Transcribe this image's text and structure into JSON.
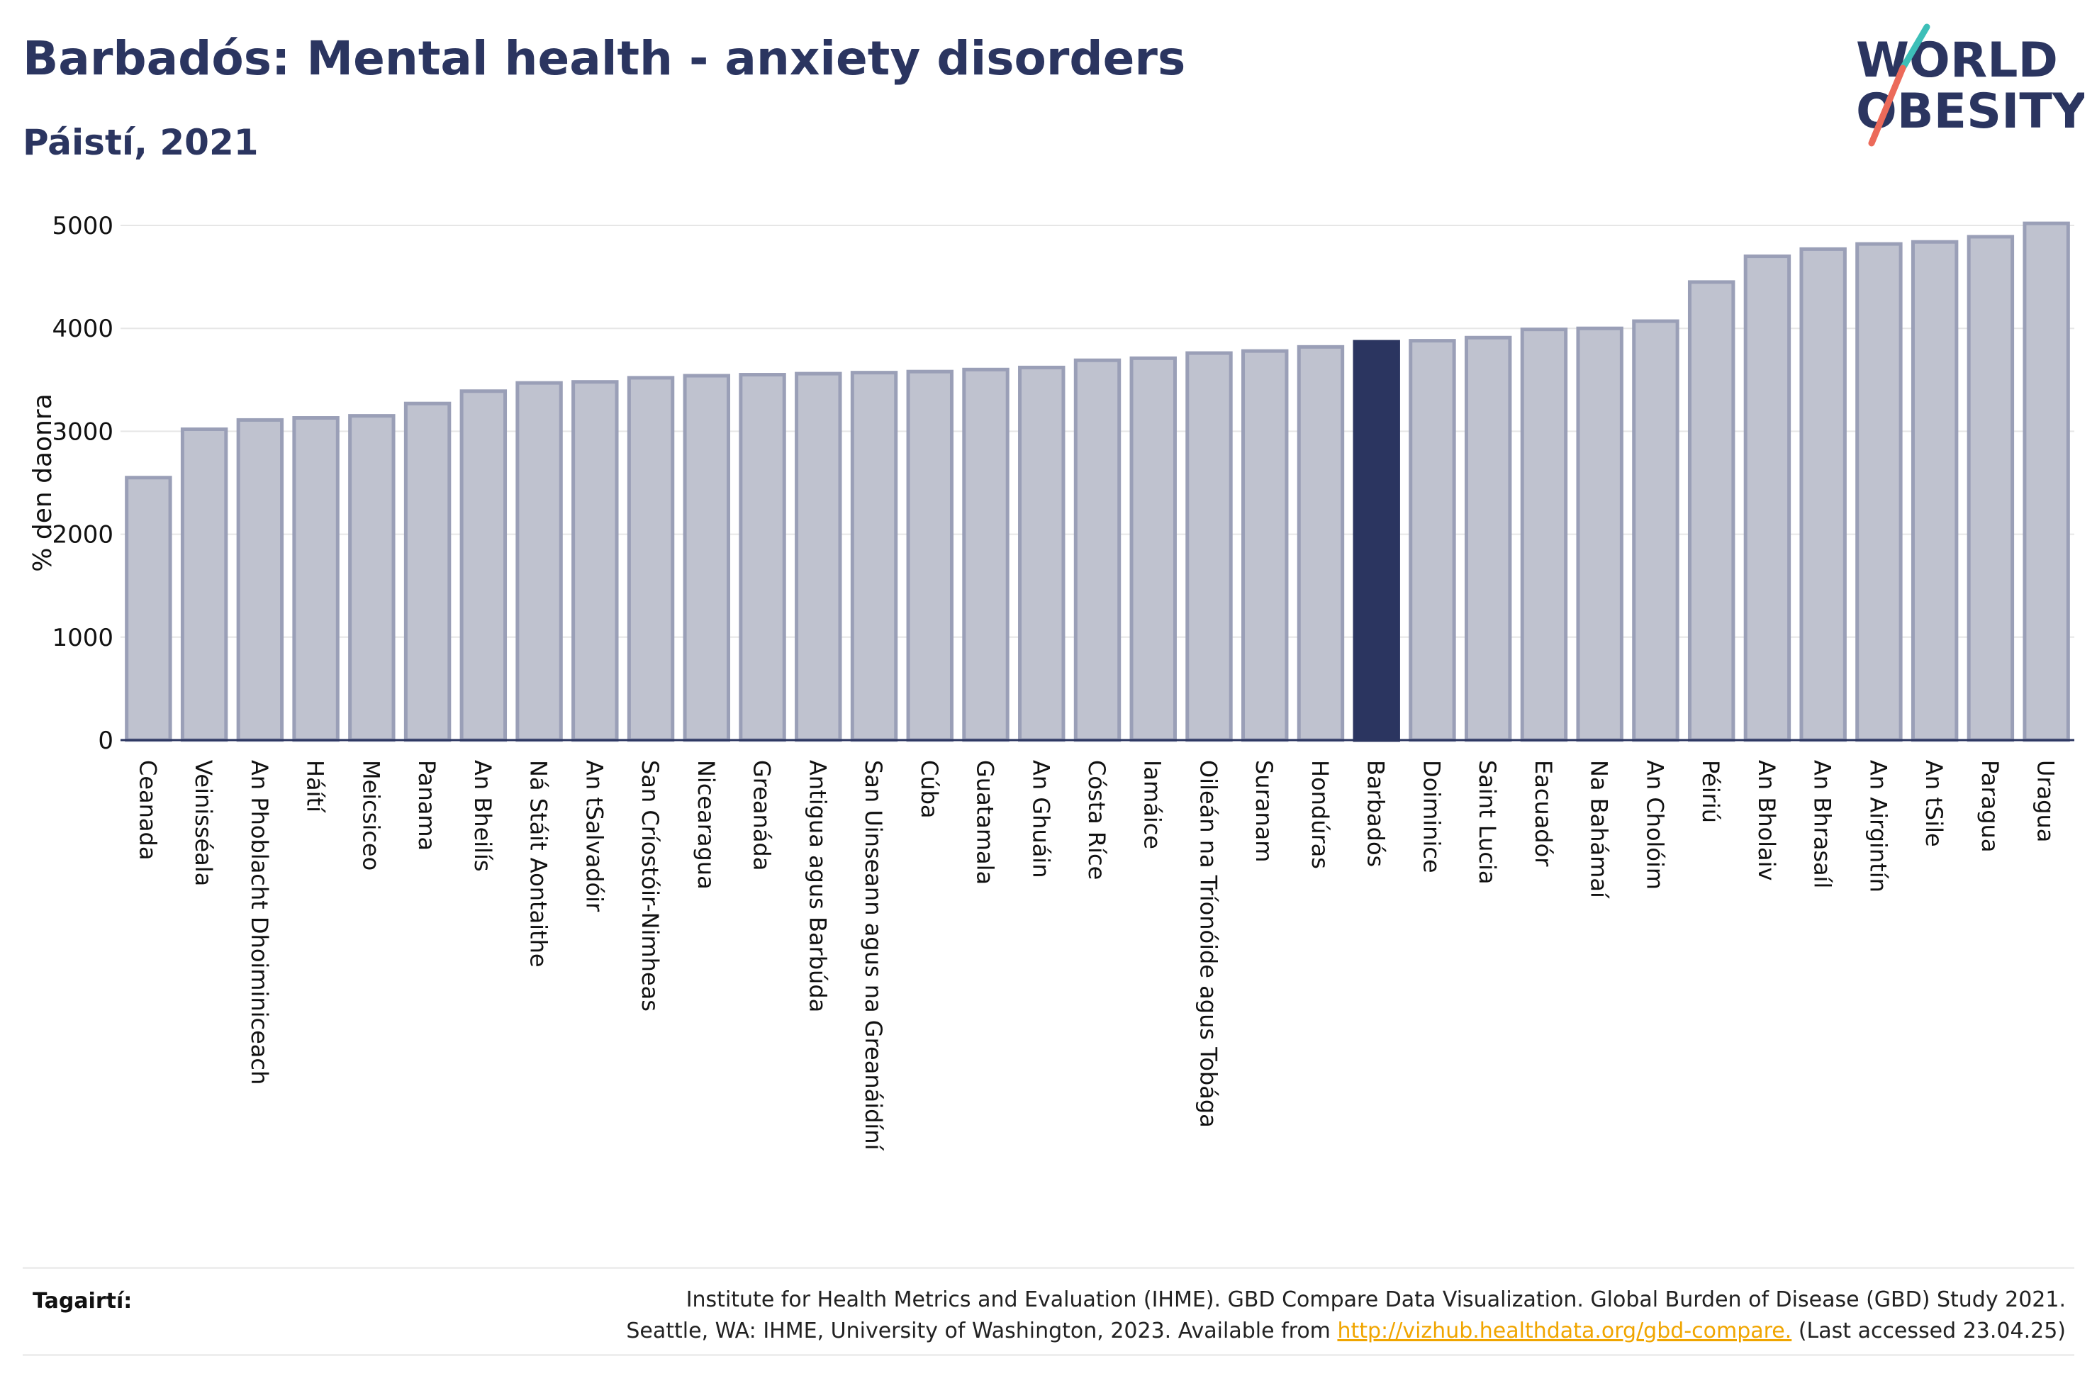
{
  "header": {
    "title": "Barbadós: Mental health - anxiety disorders",
    "subtitle": "Páistí, 2021"
  },
  "logo": {
    "line1": "WORLD",
    "line2": "OBESITY"
  },
  "colors": {
    "bar": "#bfc2cf",
    "bar_edge": "#9a9fb7",
    "highlight": "#2b3560",
    "text": "#2b3560"
  },
  "chart_data": {
    "type": "bar",
    "ylabel": "% den daonra",
    "ylim": [
      0,
      5000
    ],
    "yticks": [
      0,
      1000,
      2000,
      3000,
      4000,
      5000
    ],
    "highlight": "Barbadós",
    "categories": [
      "Ceanada",
      "Veinisséala",
      "An Phoblacht Dhoiminiceach",
      "Háítí",
      "Meicsiceo",
      "Panama",
      "An Bheilís",
      "Ná Stáit Aontaithe",
      "An tSalvadóir",
      "San Críostóir-Nimheas",
      "Nicearagua",
      "Greanáda",
      "Antigua agus Barbúda",
      "San Uinseann agus na Greanáidíní",
      "Cúba",
      "Guatamala",
      "An Ghuáin",
      "Cósta Ríce",
      "Iamáice",
      "Oileán na Tríonóide agus Tobága",
      "Suranam",
      "Hondúras",
      "Barbadós",
      "Doiminice",
      "Saint Lucia",
      "Eacuadór",
      "Na Bahámaí",
      "An Cholóim",
      "Péiriú",
      "An Bholaiv",
      "An Bhrasaíl",
      "An Airgintín",
      "An tSile",
      "Paragua",
      "Uragua"
    ],
    "values": [
      2550,
      3020,
      3110,
      3130,
      3150,
      3270,
      3390,
      3470,
      3480,
      3520,
      3540,
      3550,
      3560,
      3570,
      3580,
      3600,
      3620,
      3690,
      3710,
      3760,
      3780,
      3820,
      3870,
      3880,
      3910,
      3990,
      4000,
      4070,
      4450,
      4700,
      4770,
      4820,
      4840,
      4890,
      5020
    ]
  },
  "footer": {
    "source_label": "Tagairtí:",
    "source_line1": "Institute for Health Metrics and Evaluation (IHME). GBD Compare Data Visualization. Global Burden of Disease (GBD) Study 2021.",
    "source_line2_pre": "Seattle, WA: IHME, University of Washington, 2023. Available from ",
    "source_link": "http://vizhub.healthdata.org/gbd-compare.",
    "source_line2_post": " (Last accessed 23.04.25)"
  }
}
